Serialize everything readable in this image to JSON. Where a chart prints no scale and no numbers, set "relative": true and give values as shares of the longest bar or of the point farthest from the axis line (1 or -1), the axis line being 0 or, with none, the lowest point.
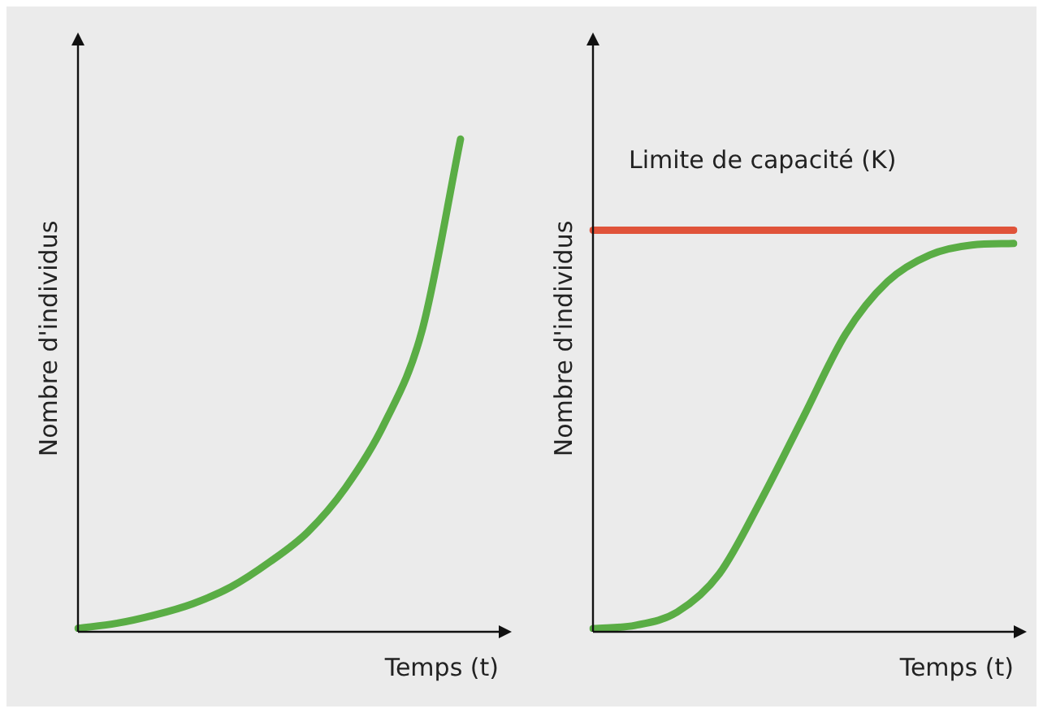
{
  "chart_data": [
    {
      "type": "line",
      "relative": true,
      "xlabel": "Temps (t)",
      "ylabel": "Nombre d'individus",
      "tick_labels": false,
      "grid": false,
      "marker": "none",
      "categories": [
        null,
        null,
        null,
        null,
        null,
        null,
        null,
        null,
        null,
        null,
        null,
        null
      ],
      "series": [
        {
          "color": "#5aad45",
          "values": [
            0.007,
            0.017,
            0.034,
            0.057,
            0.091,
            0.141,
            0.202,
            0.293,
            0.421,
            0.613,
            1,
            null
          ]
        }
      ]
    },
    {
      "type": "line",
      "relative": true,
      "xlabel": "Temps (t)",
      "ylabel": "Nombre d'individus",
      "tick_labels": false,
      "grid": false,
      "marker": "none",
      "categories": [
        null,
        null,
        null,
        null,
        null,
        null,
        null,
        null,
        null,
        null,
        null
      ],
      "series": [
        {
          "name": "Limite de capacité (K)",
          "color": "#e0533a",
          "values": [
            1,
            1,
            1,
            1,
            1,
            1,
            1,
            1,
            1,
            1,
            1
          ]
        },
        {
          "color": "#5aad45",
          "values": [
            0.008,
            0.016,
            0.049,
            0.144,
            0.329,
            0.535,
            0.741,
            0.872,
            0.938,
            0.963,
            0.967
          ]
        }
      ]
    }
  ]
}
